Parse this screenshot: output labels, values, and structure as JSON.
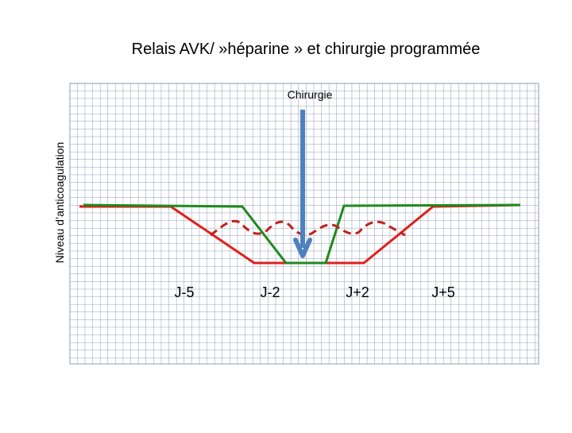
{
  "title": "Relais AVK/ »héparine » et chirurgie programmée",
  "y_axis_label": "Niveau d’anticoagulation",
  "annotation": "Chirurgie",
  "day_labels": [
    "J-5",
    "J-2",
    "J+2",
    "J+5"
  ]
}
